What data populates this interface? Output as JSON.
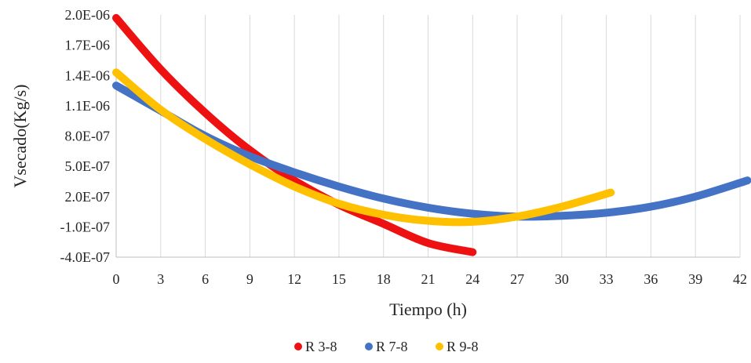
{
  "chart_data": {
    "type": "line",
    "title": "",
    "xlabel": "Tiempo (h)",
    "ylabel": "Vsecado(Kg/s)",
    "xlim": [
      0,
      42
    ],
    "ylim": [
      -4e-07,
      2e-06
    ],
    "x_ticks": [
      "0",
      "3",
      "6",
      "9",
      "12",
      "15",
      "18",
      "21",
      "24",
      "27",
      "30",
      "33",
      "36",
      "39",
      "42"
    ],
    "y_ticks": [
      "2.0E-06",
      "1.7E-06",
      "1.4E-06",
      "1.1E-06",
      "8.0E-07",
      "5.0E-07",
      "2.0E-07",
      "-1.0E-07",
      "-4.0E-07"
    ],
    "grid": "vertical",
    "legend_position": "bottom",
    "series": [
      {
        "name": "R 3-8",
        "color": "#ee1111",
        "x": [
          0,
          3,
          6,
          9,
          12,
          15,
          18,
          21,
          24
        ],
        "y": [
          1.97e-06,
          1.46e-06,
          1.03e-06,
          6.6e-07,
          3.6e-07,
          1.2e-07,
          -7e-08,
          -2.6e-07,
          -3.5e-07
        ]
      },
      {
        "name": "R 7-8",
        "color": "#4472c4",
        "x": [
          0,
          3,
          6,
          9,
          12,
          15,
          18,
          21,
          24,
          27,
          30,
          33,
          36,
          39,
          42.5
        ],
        "y": [
          1.3e-06,
          1.05e-06,
          8e-07,
          6e-07,
          4.4e-07,
          3e-07,
          1.8e-07,
          9e-08,
          3e-08,
          2e-09,
          1e-08,
          4e-08,
          1e-07,
          2e-07,
          3.6e-07
        ]
      },
      {
        "name": "R 9-8",
        "color": "#ffc000",
        "x": [
          0,
          3,
          6,
          9,
          12,
          15,
          18,
          21,
          24,
          27,
          30,
          33.3
        ],
        "y": [
          1.43e-06,
          1.06e-06,
          7.7e-07,
          5.2e-07,
          3e-07,
          1.3e-07,
          2e-08,
          -4e-08,
          -5e-08,
          2e-09,
          1e-07,
          2.4e-07
        ]
      }
    ]
  }
}
